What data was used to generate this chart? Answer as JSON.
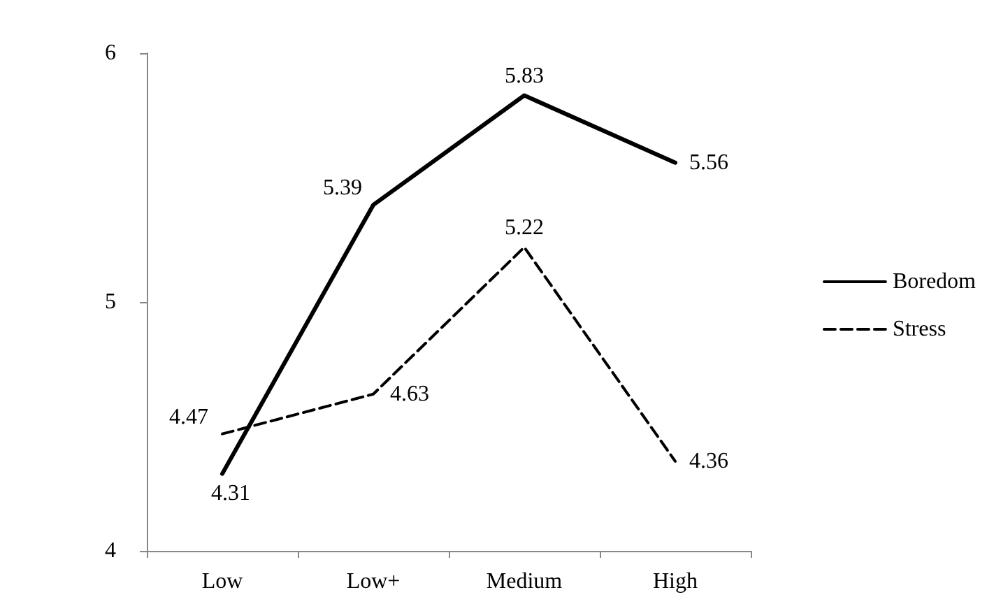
{
  "chart_data": {
    "type": "line",
    "categories": [
      "Low",
      "Low+",
      "Medium",
      "High"
    ],
    "series": [
      {
        "name": "Boredom",
        "color": "#000000",
        "values": [
          4.31,
          5.39,
          5.83,
          5.56
        ],
        "line_style": "solid"
      },
      {
        "name": "Stress",
        "color": "#000000",
        "values": [
          4.47,
          4.63,
          5.22,
          4.36
        ],
        "line_style": "dashed"
      }
    ],
    "ylim": [
      4,
      6
    ],
    "yticks": [
      4,
      5,
      6
    ],
    "grid": false,
    "legend": "right",
    "marker": "none",
    "data_labels": true
  }
}
